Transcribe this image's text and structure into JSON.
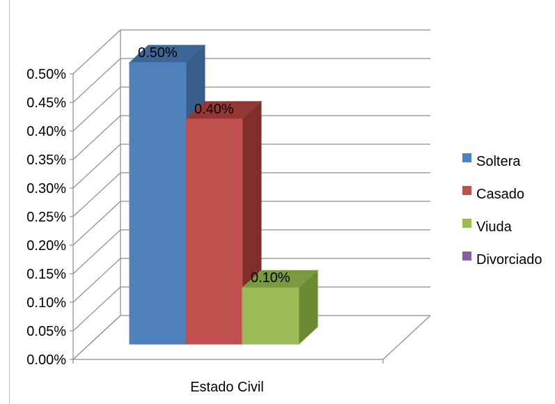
{
  "chart_data": {
    "type": "bar",
    "title": "",
    "xlabel": "Estado Civil",
    "ylabel": "",
    "categories": [
      "Estado Civil"
    ],
    "series": [
      {
        "name": "Soltera",
        "values": [
          0.005
        ],
        "label": "0.50%",
        "color": "#4f81bd",
        "side": "#385d8a",
        "top": "#3d6698"
      },
      {
        "name": "Casado",
        "values": [
          0.004
        ],
        "label": "0.40%",
        "color": "#c0504d",
        "side": "#7f2e2c",
        "top": "#953835"
      },
      {
        "name": "Viuda",
        "values": [
          0.001
        ],
        "label": "0.10%",
        "color": "#9bbb59",
        "side": "#6b8a34",
        "top": "#7a9a40"
      },
      {
        "name": "Divorciado",
        "values": [
          0
        ],
        "label": "",
        "color": "#8064a2",
        "side": "#5f4a7a",
        "top": "#6a5288"
      }
    ],
    "ylim": [
      0,
      0.005
    ],
    "yticks": [
      "0.00%",
      "0.05%",
      "0.10%",
      "0.15%",
      "0.20%",
      "0.25%",
      "0.30%",
      "0.35%",
      "0.40%",
      "0.45%",
      "0.50%"
    ],
    "grid": true,
    "legend": "right",
    "style": "3d-clustered-column"
  }
}
